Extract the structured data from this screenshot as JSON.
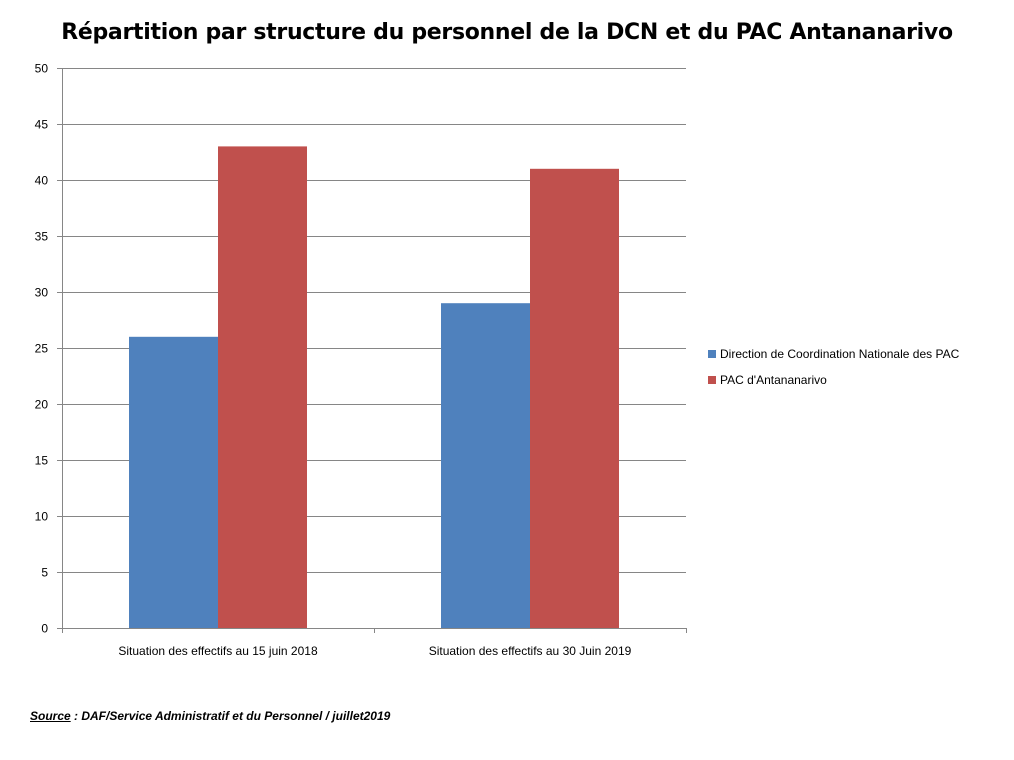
{
  "chart_data": {
    "type": "bar",
    "title": "Répartition par structure du personnel de la DCN et du PAC Antananarivo",
    "categories": [
      "Situation des effectifs au 15 juin 2018",
      "Situation des effectifs au 30 Juin 2019"
    ],
    "series": [
      {
        "name": "Direction de Coordination Nationale des PAC",
        "values": [
          26,
          29
        ],
        "color": "#4F81BD"
      },
      {
        "name": "PAC d'Antananarivo",
        "values": [
          43,
          41
        ],
        "color": "#C0504D"
      }
    ],
    "ylim": [
      0,
      50
    ],
    "yticks": [
      0,
      5,
      10,
      15,
      20,
      25,
      30,
      35,
      40,
      45,
      50
    ],
    "grid": true,
    "legend_position": "right"
  },
  "source": {
    "label": "Source",
    "text": " : DAF/Service Administratif et du Personnel / juillet2019"
  }
}
